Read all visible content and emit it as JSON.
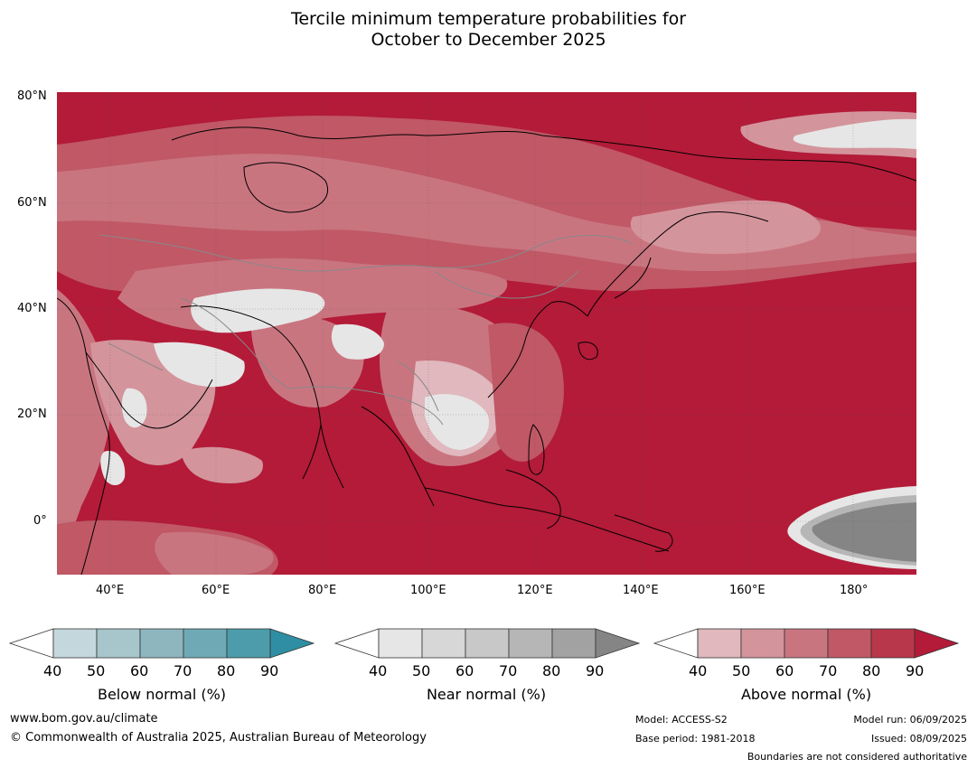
{
  "title": {
    "line1": "Tercile minimum temperature probabilities for",
    "line2": "October to December 2025"
  },
  "map": {
    "lat_labels": [
      "80°N",
      "60°N",
      "40°N",
      "20°N",
      "0°"
    ],
    "lon_labels": [
      "40°E",
      "60°E",
      "80°E",
      "100°E",
      "120°E",
      "140°E",
      "160°E",
      "180°"
    ],
    "background_color": "#b31b38",
    "land_outline_color": "#000000",
    "border_color": "#888888"
  },
  "colorbars": [
    {
      "title": "Below normal (%)",
      "ticks": [
        "40",
        "50",
        "60",
        "70",
        "80",
        "90"
      ],
      "colors": [
        "#c4d7dd",
        "#a7c6cc",
        "#8db6bf",
        "#70a9b6",
        "#4d9cab",
        "#2f8ea3"
      ]
    },
    {
      "title": "Near normal (%)",
      "ticks": [
        "40",
        "50",
        "60",
        "70",
        "80",
        "90"
      ],
      "colors": [
        "#e6e6e6",
        "#d7d7d7",
        "#c8c8c8",
        "#b6b6b6",
        "#a2a2a2",
        "#858585"
      ]
    },
    {
      "title": "Above normal (%)",
      "ticks": [
        "40",
        "50",
        "60",
        "70",
        "80",
        "90"
      ],
      "colors": [
        "#e0b8bd",
        "#d4949c",
        "#c97580",
        "#c05866",
        "#b9374a",
        "#b31b38"
      ]
    }
  ],
  "footer": {
    "website": "www.bom.gov.au/climate",
    "copyright": "© Commonwealth of Australia 2025, Australian Bureau of Meteorology",
    "model": "Model: ACCESS-S2",
    "base_period": "Base period: 1981-2018",
    "model_run": "Model run: 06/09/2025",
    "issued": "Issued: 08/09/2025",
    "disclaimer": "Boundaries are not considered authoritative"
  }
}
